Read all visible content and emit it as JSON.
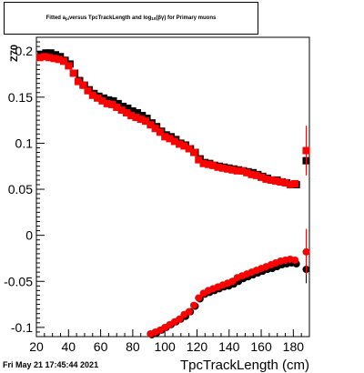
{
  "chart_data": {
    "type": "scatter",
    "title_parts": {
      "pre": "Fitted a",
      "sub1": "pi",
      "mid": " versus TpcTrackLength and log",
      "sub2": "10",
      "post": "(βγ) for Primary muons"
    },
    "xlabel": "TpcTrackLength (cm)",
    "ylabel": "Z_{70}",
    "xlim": [
      20,
      190
    ],
    "ylim": [
      -0.11,
      0.215
    ],
    "x_ticks": [
      20,
      40,
      60,
      80,
      100,
      120,
      140,
      160,
      180
    ],
    "y_ticks": [
      {
        "v": -0.1,
        "label": "-0.1"
      },
      {
        "v": -0.05,
        "label": "-0.05"
      },
      {
        "v": 0,
        "label": "0"
      },
      {
        "v": 0.05,
        "label": "0.05"
      },
      {
        "v": 0.1,
        "label": "0.1"
      },
      {
        "v": 0.15,
        "label": "0.15"
      },
      {
        "v": 0.2,
        "label": "0.2"
      }
    ],
    "grid": false,
    "colors": {
      "red": "#ff0000",
      "black": "#000000"
    },
    "series": [
      {
        "color": "black",
        "marker": "square",
        "x": [
          22,
          25,
          28,
          31,
          34,
          37,
          40,
          43,
          46,
          49,
          52,
          55,
          58,
          61,
          64,
          67,
          70,
          73,
          76,
          79,
          82,
          85,
          88,
          91,
          94,
          97,
          100,
          103,
          106,
          109,
          112,
          115,
          118,
          121,
          124,
          127,
          130,
          133,
          136,
          139,
          142,
          145,
          148,
          151,
          154,
          157,
          160,
          163,
          166,
          169,
          172,
          175,
          178,
          181
        ],
        "y": [
          0.196,
          0.198,
          0.198,
          0.196,
          0.194,
          0.19,
          0.186,
          0.176,
          0.168,
          0.163,
          0.158,
          0.154,
          0.151,
          0.149,
          0.147,
          0.146,
          0.143,
          0.14,
          0.138,
          0.135,
          0.133,
          0.13,
          0.127,
          0.122,
          0.118,
          0.113,
          0.109,
          0.107,
          0.104,
          0.1,
          0.098,
          0.094,
          0.09,
          0.083,
          0.079,
          0.078,
          0.076,
          0.075,
          0.074,
          0.073,
          0.072,
          0.071,
          0.07,
          0.069,
          0.068,
          0.066,
          0.064,
          0.062,
          0.06,
          0.06,
          0.058,
          0.057,
          0.055,
          0.055
        ]
      },
      {
        "color": "red",
        "marker": "square",
        "x": [
          22,
          25,
          28,
          31,
          34,
          37,
          40,
          43,
          46,
          49,
          52,
          55,
          58,
          61,
          64,
          67,
          70,
          73,
          76,
          79,
          82,
          85,
          88,
          91,
          94,
          97,
          100,
          103,
          106,
          109,
          112,
          115,
          118,
          121,
          124,
          127,
          130,
          133,
          136,
          139,
          142,
          145,
          148,
          151,
          154,
          157,
          160,
          163,
          166,
          169,
          172,
          175,
          178,
          181
        ],
        "y": [
          0.193,
          0.194,
          0.193,
          0.192,
          0.191,
          0.189,
          0.184,
          0.176,
          0.167,
          0.163,
          0.157,
          0.152,
          0.149,
          0.146,
          0.143,
          0.142,
          0.139,
          0.136,
          0.133,
          0.13,
          0.128,
          0.126,
          0.124,
          0.12,
          0.116,
          0.112,
          0.107,
          0.105,
          0.102,
          0.099,
          0.097,
          0.094,
          0.09,
          0.082,
          0.078,
          0.077,
          0.076,
          0.074,
          0.073,
          0.072,
          0.071,
          0.07,
          0.07,
          0.068,
          0.066,
          0.065,
          0.063,
          0.061,
          0.06,
          0.059,
          0.058,
          0.057,
          0.055,
          0.056
        ]
      },
      {
        "color": "black",
        "marker": "circle",
        "x": [
          91,
          94,
          97,
          100,
          103,
          106,
          109,
          112,
          115,
          118,
          121,
          124,
          127,
          130,
          133,
          136,
          139,
          142,
          145,
          148,
          151,
          154,
          157,
          160,
          163,
          166,
          169,
          172,
          175,
          178,
          181
        ],
        "y": [
          -0.108,
          -0.106,
          -0.103,
          -0.1,
          -0.097,
          -0.094,
          -0.091,
          -0.088,
          -0.083,
          -0.077,
          -0.069,
          -0.064,
          -0.062,
          -0.06,
          -0.058,
          -0.056,
          -0.055,
          -0.053,
          -0.05,
          -0.047,
          -0.045,
          -0.043,
          -0.041,
          -0.039,
          -0.037,
          -0.036,
          -0.034,
          -0.032,
          -0.031,
          -0.03,
          -0.031
        ]
      },
      {
        "color": "red",
        "marker": "circle",
        "x": [
          91,
          94,
          97,
          100,
          103,
          106,
          109,
          112,
          115,
          118,
          121,
          124,
          127,
          130,
          133,
          136,
          139,
          142,
          145,
          148,
          151,
          154,
          157,
          160,
          163,
          166,
          169,
          172,
          175,
          178,
          181
        ],
        "y": [
          -0.107,
          -0.105,
          -0.103,
          -0.1,
          -0.097,
          -0.094,
          -0.091,
          -0.086,
          -0.083,
          -0.076,
          -0.068,
          -0.063,
          -0.06,
          -0.058,
          -0.056,
          -0.054,
          -0.052,
          -0.05,
          -0.046,
          -0.044,
          -0.042,
          -0.04,
          -0.038,
          -0.036,
          -0.034,
          -0.032,
          -0.03,
          -0.028,
          -0.027,
          -0.026,
          -0.027
        ]
      }
    ],
    "edge_points": [
      {
        "x": 188,
        "y": 0.081,
        "color": "black",
        "marker": "square",
        "err": 0.01
      },
      {
        "x": 188,
        "y": 0.092,
        "color": "red",
        "marker": "square",
        "err": 0.027
      },
      {
        "x": 188,
        "y": -0.037,
        "color": "black",
        "marker": "circle",
        "err": 0.015
      },
      {
        "x": 188,
        "y": -0.018,
        "color": "red",
        "marker": "circle",
        "err": 0.025
      }
    ]
  },
  "footer": {
    "timestamp": "Fri May 21 17:45:44 2021"
  }
}
